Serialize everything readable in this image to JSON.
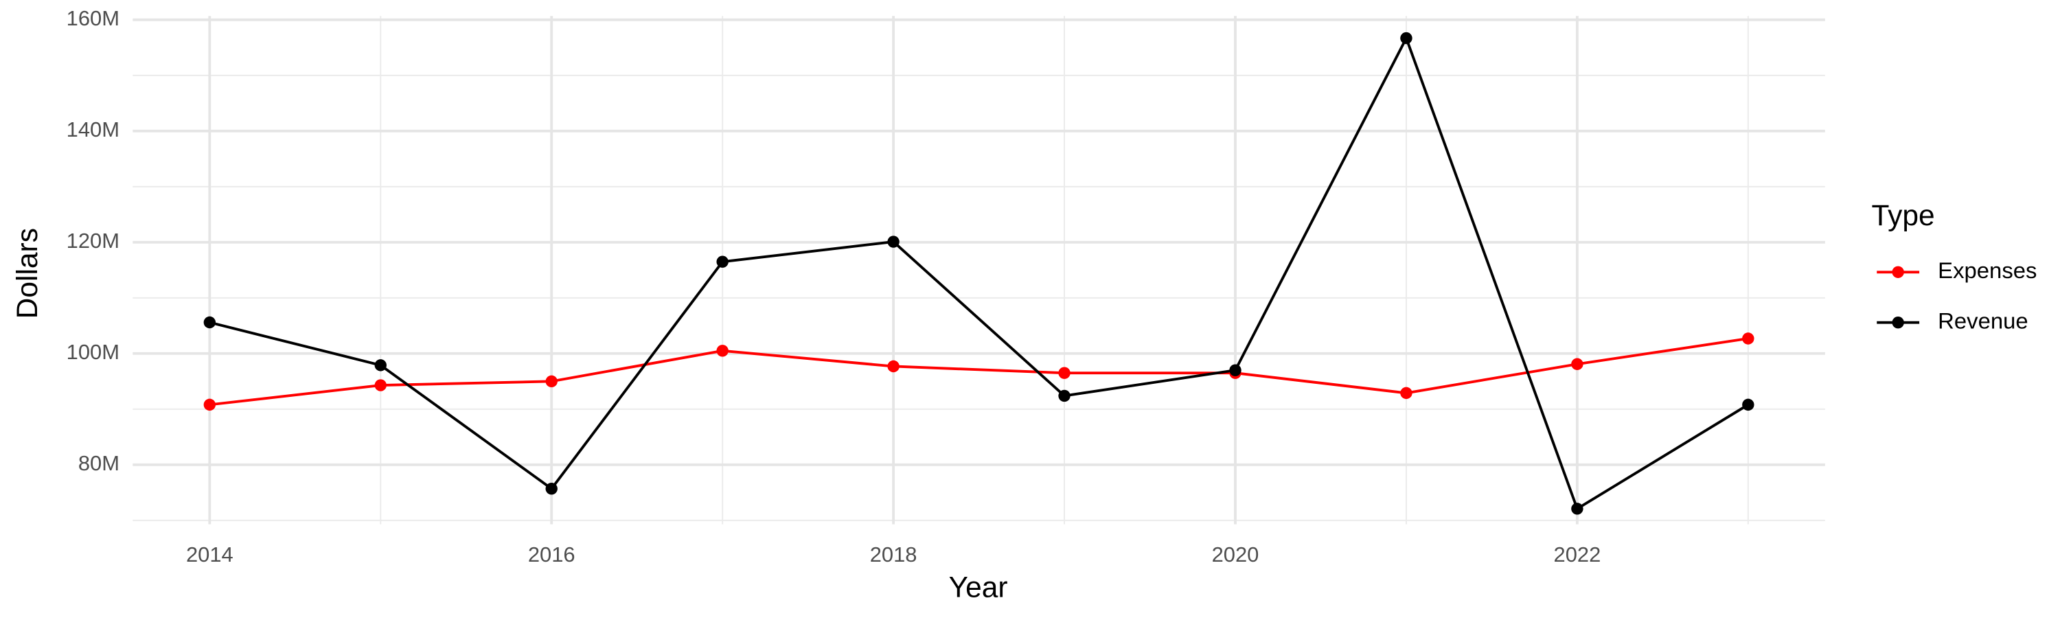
{
  "chart_data": {
    "type": "line",
    "x_label": "Year",
    "y_label": "Dollars",
    "legend_title": "Type",
    "legend_position": "right",
    "grid": true,
    "x": [
      2014,
      2015,
      2016,
      2017,
      2018,
      2019,
      2020,
      2021,
      2022,
      2023
    ],
    "series": [
      {
        "name": "Expenses",
        "color": "#ff0000",
        "values": [
          90800000,
          94300000,
          95000000,
          100500000,
          97700000,
          96500000,
          96500000,
          92900000,
          98100000,
          102700000
        ]
      },
      {
        "name": "Revenue",
        "color": "#000000",
        "values": [
          105600000,
          97900000,
          75700000,
          116500000,
          120100000,
          92400000,
          97000000,
          156700000,
          72100000,
          90800000
        ]
      }
    ],
    "xlim": [
      2013.55,
      2023.45
    ],
    "xticks": [
      2014,
      2016,
      2018,
      2020,
      2022
    ],
    "ylim": [
      69300000,
      160700000
    ],
    "yticks": [
      {
        "value": 80000000,
        "label": "80M"
      },
      {
        "value": 100000000,
        "label": "100M"
      },
      {
        "value": 120000000,
        "label": "120M"
      },
      {
        "value": 140000000,
        "label": "140M"
      },
      {
        "value": 160000000,
        "label": "160M"
      }
    ]
  }
}
